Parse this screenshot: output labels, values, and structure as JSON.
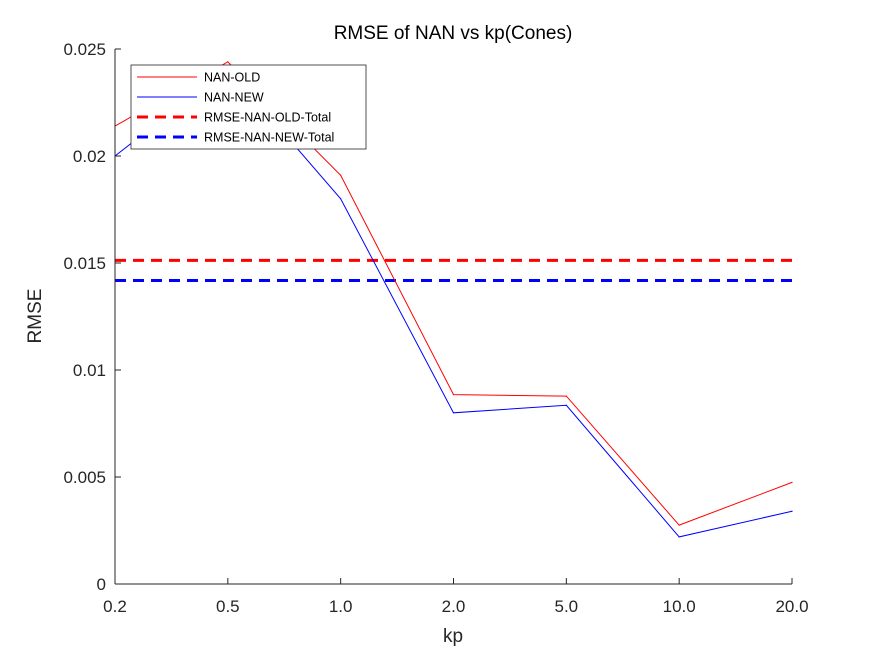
{
  "chart_data": {
    "type": "line",
    "title": "RMSE of NAN vs kp(Cones)",
    "xlabel": "kp",
    "ylabel": "RMSE",
    "categories": [
      "0.2",
      "0.5",
      "1.0",
      "2.0",
      "5.0",
      "10.0",
      "20.0"
    ],
    "ylim": [
      0,
      0.025
    ],
    "yticks": [
      0,
      0.005,
      0.01,
      0.015,
      0.02,
      0.025
    ],
    "ytick_labels": [
      "0",
      "0.005",
      "0.01",
      "0.015",
      "0.02",
      "0.025"
    ],
    "series": [
      {
        "name": "NAN-OLD",
        "color": "#ff0000",
        "style": "solid",
        "values": [
          0.0214,
          0.0244,
          0.0191,
          0.00885,
          0.00878,
          0.00275,
          0.00475
        ]
      },
      {
        "name": "NAN-NEW",
        "color": "#0000ff",
        "style": "solid",
        "values": [
          0.02,
          0.0241,
          0.018,
          0.008,
          0.00835,
          0.0022,
          0.0034
        ]
      }
    ],
    "reference_lines": [
      {
        "name": "RMSE-NAN-OLD-Total",
        "color": "#ff0000",
        "style": "dashed",
        "value": 0.01512
      },
      {
        "name": "RMSE-NAN-NEW-Total",
        "color": "#0000ff",
        "style": "dashed",
        "value": 0.01418
      }
    ],
    "legend_position": "top-left",
    "grid": false
  }
}
